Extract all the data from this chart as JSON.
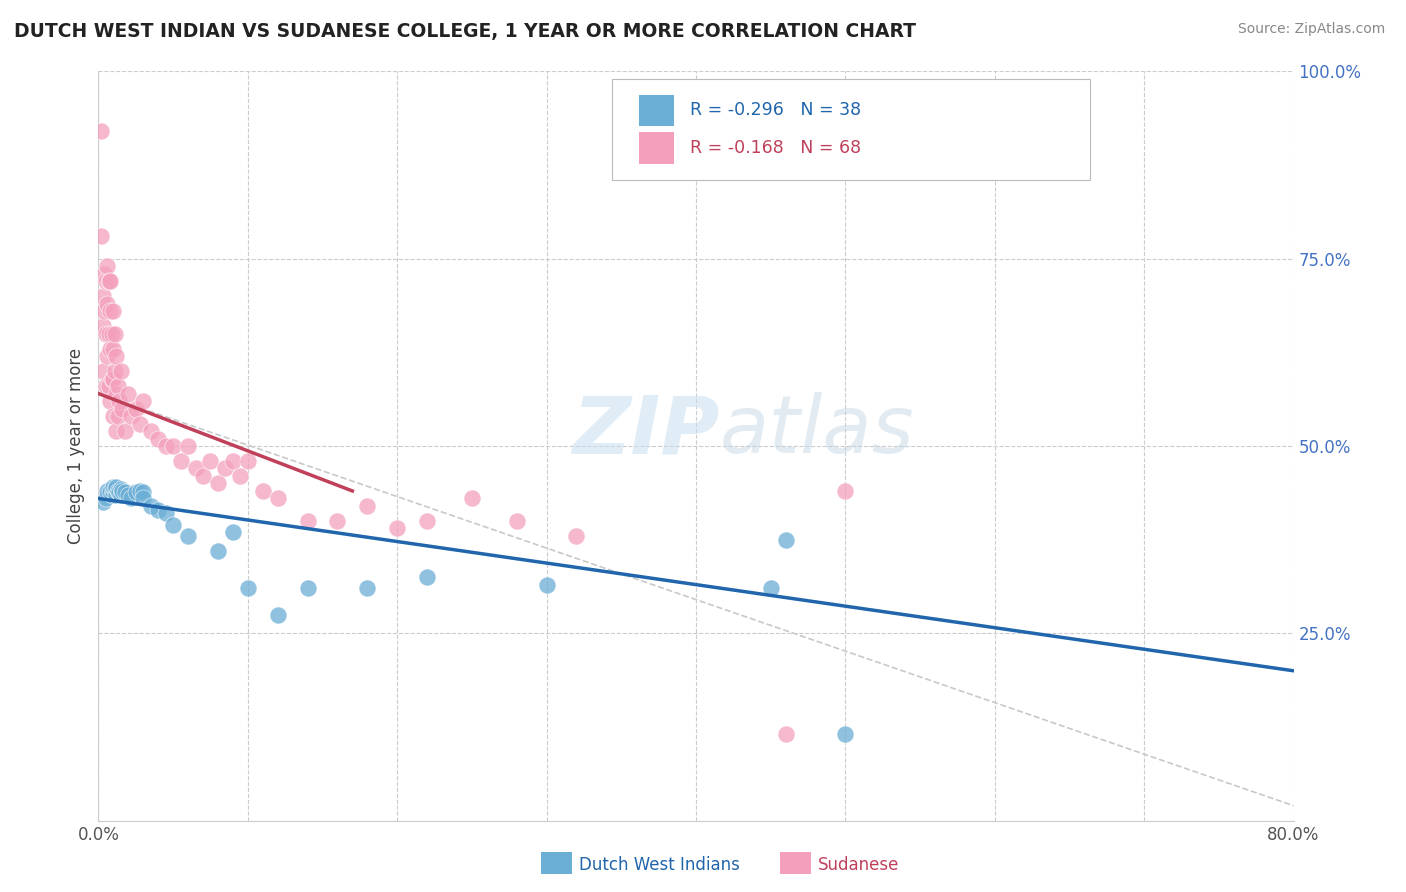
{
  "title": "DUTCH WEST INDIAN VS SUDANESE COLLEGE, 1 YEAR OR MORE CORRELATION CHART",
  "source": "Source: ZipAtlas.com",
  "ylabel": "College, 1 year or more",
  "legend_label1": "Dutch West Indians",
  "legend_label2": "Sudanese",
  "r1": -0.296,
  "n1": 38,
  "r2": -0.168,
  "n2": 68,
  "color1": "#6baed6",
  "color2": "#f4a0bc",
  "trendline1_color": "#2166ac",
  "trendline2_color": "#c0405a",
  "dashed_line_color": "#bbbbbb",
  "xlim": [
    0.0,
    0.8
  ],
  "ylim": [
    0.0,
    1.0
  ],
  "xticks": [
    0.0,
    0.1,
    0.2,
    0.3,
    0.4,
    0.5,
    0.6,
    0.7,
    0.8
  ],
  "yticks": [
    0.0,
    0.25,
    0.5,
    0.75,
    1.0
  ],
  "watermark_zip": "ZIP",
  "watermark_atlas": "atlas",
  "background_color": "#ffffff",
  "grid_color": "#cccccc",
  "blue_points_x": [
    0.003,
    0.005,
    0.006,
    0.008,
    0.009,
    0.01,
    0.01,
    0.011,
    0.012,
    0.012,
    0.013,
    0.014,
    0.015,
    0.015,
    0.016,
    0.018,
    0.02,
    0.022,
    0.025,
    0.028,
    0.03,
    0.03,
    0.035,
    0.04,
    0.045,
    0.05,
    0.06,
    0.08,
    0.09,
    0.1,
    0.12,
    0.14,
    0.18,
    0.22,
    0.3,
    0.45,
    0.46,
    0.5
  ],
  "blue_points_y": [
    0.425,
    0.43,
    0.44,
    0.438,
    0.435,
    0.44,
    0.445,
    0.442,
    0.435,
    0.445,
    0.44,
    0.438,
    0.435,
    0.442,
    0.44,
    0.438,
    0.435,
    0.43,
    0.438,
    0.44,
    0.438,
    0.43,
    0.42,
    0.415,
    0.41,
    0.395,
    0.38,
    0.36,
    0.385,
    0.31,
    0.275,
    0.31,
    0.31,
    0.325,
    0.315,
    0.31,
    0.375,
    0.115
  ],
  "pink_points_x": [
    0.002,
    0.002,
    0.003,
    0.003,
    0.003,
    0.004,
    0.004,
    0.005,
    0.005,
    0.005,
    0.006,
    0.006,
    0.006,
    0.007,
    0.007,
    0.007,
    0.008,
    0.008,
    0.008,
    0.008,
    0.009,
    0.009,
    0.01,
    0.01,
    0.01,
    0.01,
    0.011,
    0.011,
    0.012,
    0.012,
    0.012,
    0.013,
    0.013,
    0.014,
    0.015,
    0.016,
    0.018,
    0.02,
    0.022,
    0.025,
    0.028,
    0.03,
    0.035,
    0.04,
    0.045,
    0.05,
    0.055,
    0.06,
    0.065,
    0.07,
    0.075,
    0.08,
    0.085,
    0.09,
    0.095,
    0.1,
    0.11,
    0.12,
    0.14,
    0.16,
    0.18,
    0.2,
    0.22,
    0.25,
    0.28,
    0.32,
    0.46,
    0.5
  ],
  "pink_points_y": [
    0.92,
    0.78,
    0.7,
    0.66,
    0.6,
    0.73,
    0.68,
    0.72,
    0.65,
    0.58,
    0.74,
    0.69,
    0.62,
    0.72,
    0.65,
    0.58,
    0.72,
    0.68,
    0.63,
    0.56,
    0.65,
    0.59,
    0.68,
    0.63,
    0.59,
    0.54,
    0.65,
    0.6,
    0.62,
    0.57,
    0.52,
    0.58,
    0.54,
    0.56,
    0.6,
    0.55,
    0.52,
    0.57,
    0.54,
    0.55,
    0.53,
    0.56,
    0.52,
    0.51,
    0.5,
    0.5,
    0.48,
    0.5,
    0.47,
    0.46,
    0.48,
    0.45,
    0.47,
    0.48,
    0.46,
    0.48,
    0.44,
    0.43,
    0.4,
    0.4,
    0.42,
    0.39,
    0.4,
    0.43,
    0.4,
    0.38,
    0.115,
    0.44
  ],
  "trendline1_x": [
    0.0,
    0.8
  ],
  "trendline1_y": [
    0.43,
    0.2
  ],
  "trendline2_x": [
    0.0,
    0.17
  ],
  "trendline2_y": [
    0.57,
    0.44
  ],
  "dashed_line_x": [
    0.0,
    0.8
  ],
  "dashed_line_y": [
    0.57,
    0.02
  ]
}
